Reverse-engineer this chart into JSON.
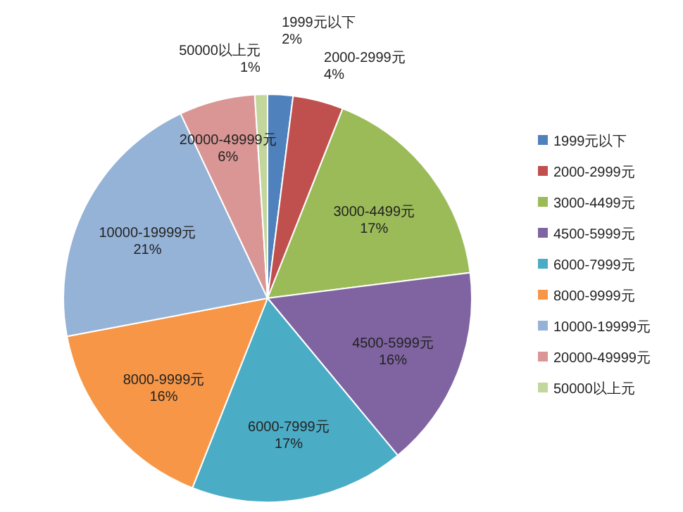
{
  "chart_data": {
    "type": "pie",
    "categories": [
      "1999元以下",
      "2000-2999元",
      "3000-4499元",
      "4500-5999元",
      "6000-7999元",
      "8000-9999元",
      "10000-19999元",
      "20000-49999元",
      "50000以上元"
    ],
    "values": [
      2,
      4,
      17,
      16,
      17,
      16,
      21,
      6,
      1
    ],
    "value_labels": [
      "2%",
      "4%",
      "17%",
      "16%",
      "17%",
      "16%",
      "21%",
      "6%",
      "1%"
    ],
    "colors": [
      "#4f81bd",
      "#c0504d",
      "#9bbb59",
      "#8064a2",
      "#4bacc6",
      "#f79646",
      "#95b3d7",
      "#d99694",
      "#c3d69b"
    ],
    "legend": "right"
  }
}
